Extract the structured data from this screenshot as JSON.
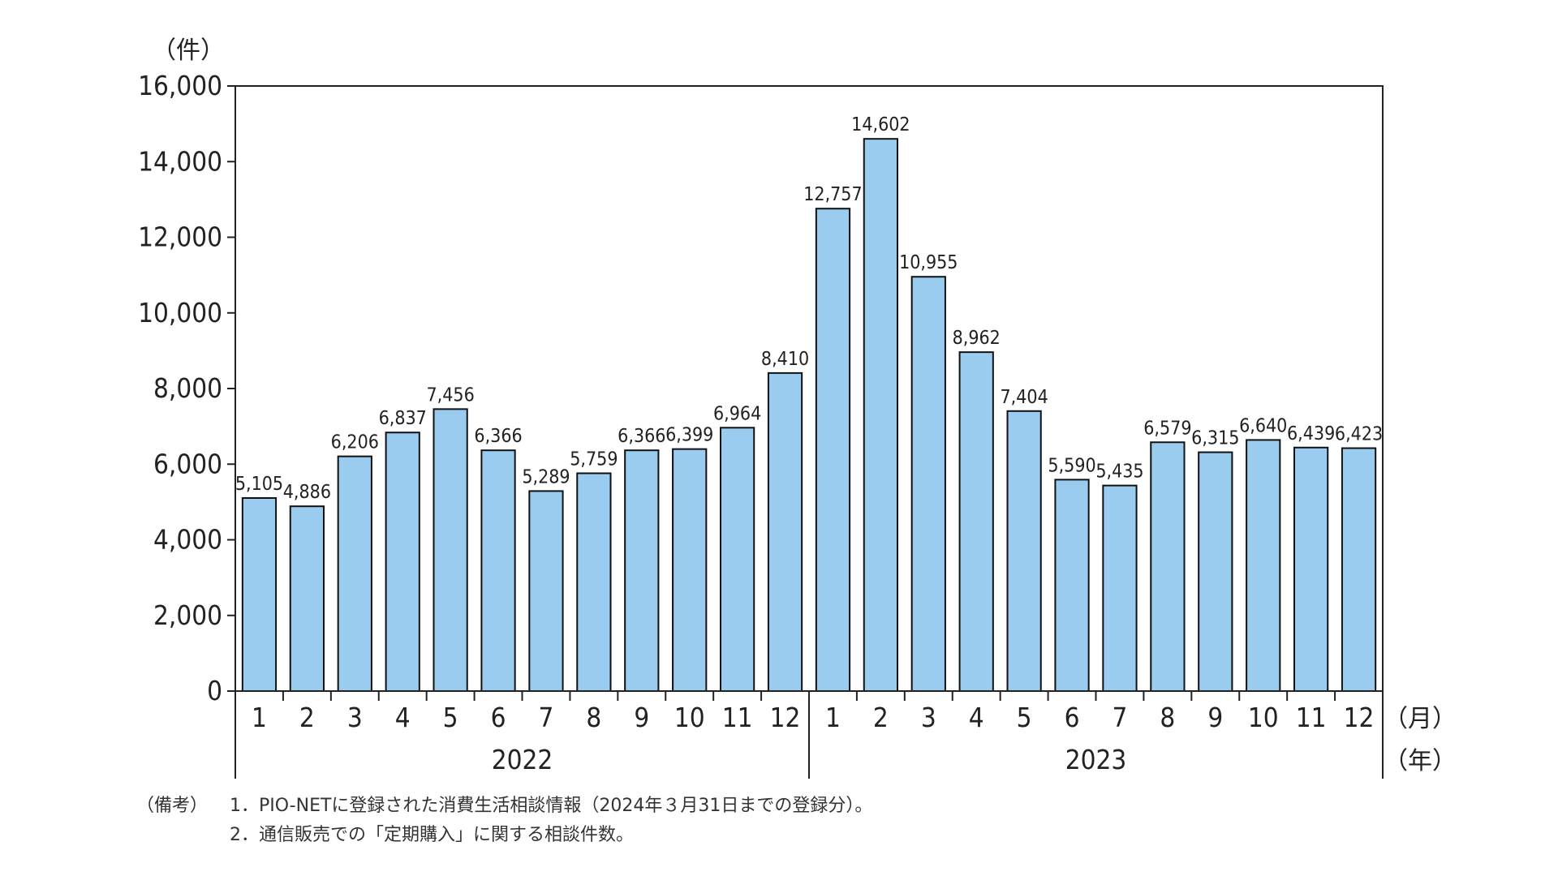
{
  "chart_data": {
    "type": "bar",
    "y_unit_label": "（件）",
    "x_unit_month": "（月）",
    "x_unit_year": "（年）",
    "ylim": [
      0,
      16000
    ],
    "y_ticks": [
      0,
      2000,
      4000,
      6000,
      8000,
      10000,
      12000,
      14000,
      16000
    ],
    "y_tick_labels": [
      "0",
      "2,000",
      "4,000",
      "6,000",
      "8,000",
      "10,000",
      "12,000",
      "14,000",
      "16,000"
    ],
    "categories": [
      "1",
      "2",
      "3",
      "4",
      "5",
      "6",
      "7",
      "8",
      "9",
      "10",
      "11",
      "12",
      "1",
      "2",
      "3",
      "4",
      "5",
      "6",
      "7",
      "8",
      "9",
      "10",
      "11",
      "12"
    ],
    "years": [
      {
        "label": "2022",
        "count": 12
      },
      {
        "label": "2023",
        "count": 12
      }
    ],
    "values": [
      5105,
      4886,
      6206,
      6837,
      7456,
      6366,
      5289,
      5759,
      6366,
      6399,
      6964,
      8410,
      12757,
      14602,
      10955,
      8962,
      7404,
      5590,
      5435,
      6579,
      6315,
      6640,
      6439,
      6423
    ],
    "value_labels": [
      "5,105",
      "4,886",
      "6,206",
      "6,837",
      "7,456",
      "6,366",
      "5,289",
      "5,759",
      "6,366",
      "6,399",
      "6,964",
      "8,410",
      "12,757",
      "14,602",
      "10,955",
      "8,962",
      "7,404",
      "5,590",
      "5,435",
      "6,579",
      "6,315",
      "6,640",
      "6,439",
      "6,423"
    ],
    "bar_color": "#99ccee",
    "grid": false
  },
  "notes": {
    "label": "（備考）",
    "items": [
      "1．PIO-NETに登録された消費生活相談情報（2024年３月31日までの登録分）。",
      "2．通信販売での「定期購入」に関する相談件数。"
    ]
  }
}
